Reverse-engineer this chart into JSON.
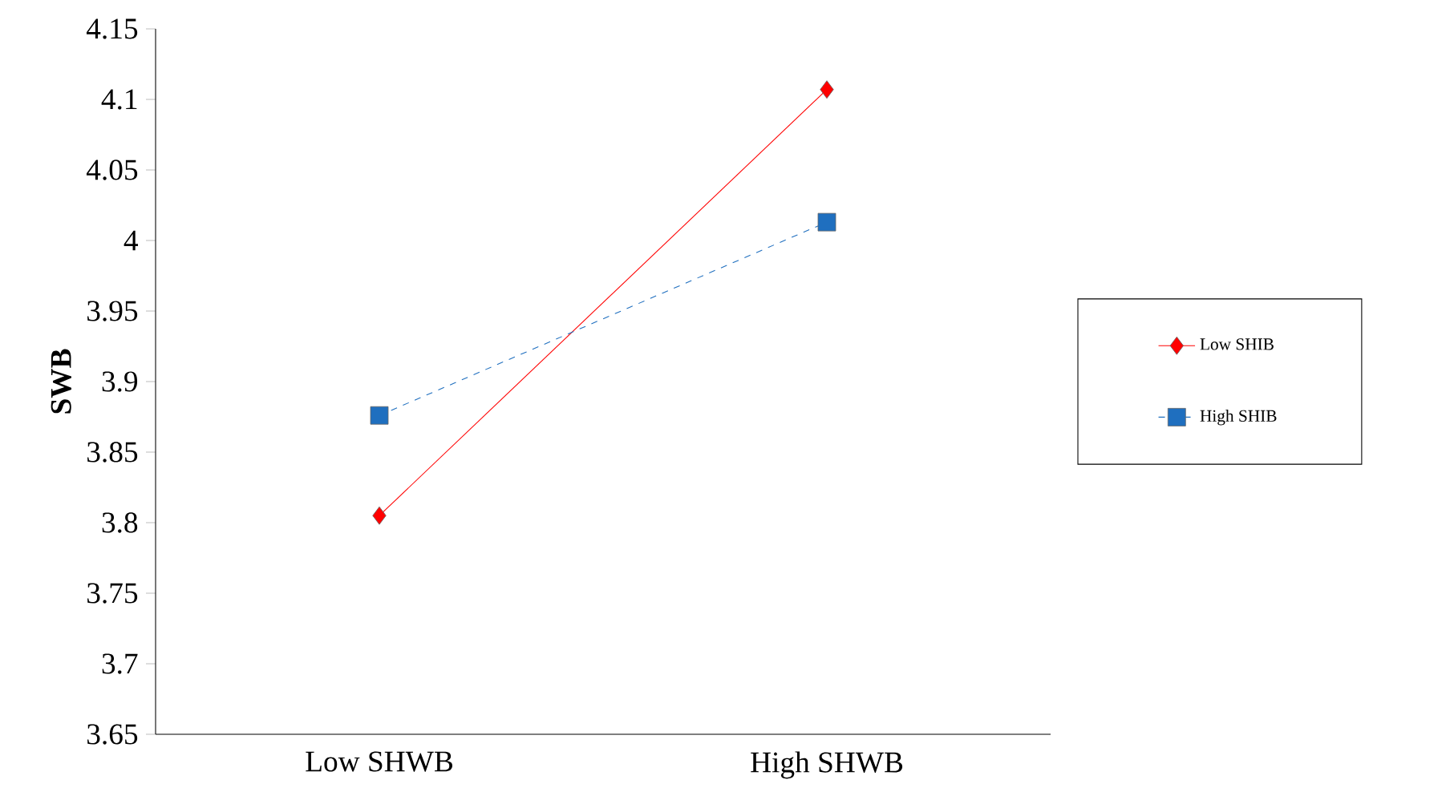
{
  "chart_data": {
    "type": "line",
    "ylabel": "SWB",
    "categories": [
      "Low SHWB",
      "High SHWB"
    ],
    "series": [
      {
        "name": "Low SHIB",
        "color": "#ff0000",
        "values": [
          3.805,
          4.107
        ],
        "marker": "diamond",
        "line_style": "solid"
      },
      {
        "name": "High SHIB",
        "color": "#1f6fbf",
        "values": [
          3.876,
          4.013
        ],
        "marker": "square",
        "line_style": "dashed"
      }
    ],
    "ylim": [
      3.65,
      4.15
    ],
    "yticks": [
      3.65,
      3.7,
      3.75,
      3.8,
      3.85,
      3.9,
      3.95,
      4,
      4.05,
      4.1,
      4.15
    ],
    "grid": false,
    "legend": "right"
  }
}
